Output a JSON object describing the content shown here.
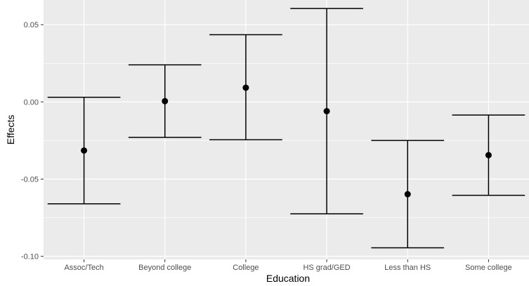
{
  "chart_data": {
    "type": "errorbar",
    "xlabel": "Education",
    "ylabel": "Effects",
    "categories": [
      "Assoc/Tech",
      "Beyond college",
      "College",
      "HS grad/GED",
      "Less than HS",
      "Some college"
    ],
    "estimate": [
      -0.0315,
      0.0005,
      0.0092,
      -0.006,
      -0.0598,
      -0.0345
    ],
    "lower": [
      -0.066,
      -0.023,
      -0.0245,
      -0.0725,
      -0.0945,
      -0.0605
    ],
    "upper": [
      0.003,
      0.024,
      0.0435,
      0.0605,
      -0.025,
      -0.0085
    ],
    "ylim": [
      -0.102,
      0.066
    ],
    "yticks": [
      -0.1,
      -0.05,
      0.0,
      0.05
    ],
    "ytick_labels": [
      "-0.10",
      "-0.05",
      "0.00",
      "0.05"
    ],
    "grid": true,
    "colors": {
      "panel": "#ebebeb",
      "grid": "#ffffff",
      "marks": "#000000"
    }
  }
}
